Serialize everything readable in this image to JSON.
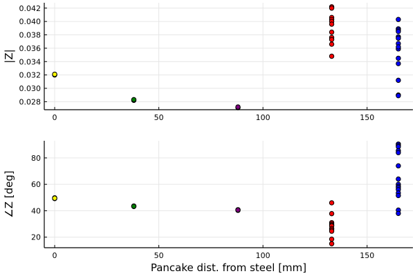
{
  "chart_data": [
    {
      "type": "scatter",
      "title": "",
      "xlabel": "",
      "ylabel": "|Z|",
      "xlim": [
        -5,
        172
      ],
      "ylim": [
        0.0268,
        0.0428
      ],
      "xticks": [
        "0",
        "50",
        "100",
        "150"
      ],
      "xtick_values": [
        0,
        50,
        100,
        150
      ],
      "yticks": [
        "0.028",
        "0.030",
        "0.032",
        "0.034",
        "0.036",
        "0.038",
        "0.040",
        "0.042"
      ],
      "ytick_values": [
        0.028,
        0.03,
        0.032,
        0.034,
        0.036,
        0.038,
        0.04,
        0.042
      ],
      "grid": true,
      "legend": "none",
      "series": [
        {
          "color": "#ffff00",
          "points": [
            [
              0,
              0.0321
            ],
            [
              0,
              0.032
            ],
            [
              0,
              0.0321
            ]
          ]
        },
        {
          "color": "#008000",
          "points": [
            [
              38,
              0.0283
            ],
            [
              38,
              0.0282
            ],
            [
              38,
              0.0283
            ]
          ]
        },
        {
          "color": "#800080",
          "points": [
            [
              88,
              0.0272
            ],
            [
              88,
              0.0271
            ],
            [
              88,
              0.0272
            ]
          ]
        },
        {
          "color": "#ff0000",
          "points": [
            [
              133,
              0.0422
            ],
            [
              133,
              0.042
            ],
            [
              133,
              0.0406
            ],
            [
              133,
              0.0403
            ],
            [
              133,
              0.04
            ],
            [
              133,
              0.0396
            ],
            [
              133,
              0.0384
            ],
            [
              133,
              0.0376
            ],
            [
              133,
              0.0373
            ],
            [
              133,
              0.0366
            ],
            [
              133,
              0.0348
            ]
          ]
        },
        {
          "color": "#0000ff",
          "points": [
            [
              165,
              0.0403
            ],
            [
              165,
              0.0389
            ],
            [
              165,
              0.0387
            ],
            [
              165,
              0.0385
            ],
            [
              165,
              0.0377
            ],
            [
              165,
              0.0375
            ],
            [
              165,
              0.0367
            ],
            [
              165,
              0.0359
            ],
            [
              165,
              0.0362
            ],
            [
              165,
              0.0345
            ],
            [
              165,
              0.0337
            ],
            [
              165,
              0.0312
            ],
            [
              165,
              0.029
            ],
            [
              165,
              0.0289
            ]
          ]
        }
      ]
    },
    {
      "type": "scatter",
      "title": "",
      "xlabel": "Pancake dist. from steel [mm]",
      "ylabel": "∠Z [deg]",
      "xlim": [
        -5,
        172
      ],
      "ylim": [
        12,
        93
      ],
      "xticks": [
        "0",
        "50",
        "100",
        "150"
      ],
      "xtick_values": [
        0,
        50,
        100,
        150
      ],
      "yticks": [
        "20",
        "40",
        "60",
        "80"
      ],
      "ytick_values": [
        20,
        40,
        60,
        80
      ],
      "grid": true,
      "legend": "none",
      "series": [
        {
          "color": "#ffff00",
          "points": [
            [
              0,
              49.8
            ],
            [
              0,
              49.2
            ],
            [
              0,
              49.5
            ]
          ]
        },
        {
          "color": "#008000",
          "points": [
            [
              38,
              43.6
            ],
            [
              38,
              43.2
            ],
            [
              38,
              43.4
            ]
          ]
        },
        {
          "color": "#800080",
          "points": [
            [
              88,
              40.8
            ],
            [
              88,
              40.3
            ],
            [
              88,
              40.6
            ]
          ]
        },
        {
          "color": "#ff0000",
          "points": [
            [
              133,
              46.0
            ],
            [
              133,
              37.8
            ],
            [
              133,
              31.0
            ],
            [
              133,
              30.0
            ],
            [
              133,
              29.2
            ],
            [
              133,
              28.5
            ],
            [
              133,
              26.5
            ],
            [
              133,
              25.5
            ],
            [
              133,
              24.5
            ],
            [
              133,
              18.5
            ],
            [
              133,
              15.0
            ]
          ]
        },
        {
          "color": "#0000ff",
          "points": [
            [
              165,
              90.5
            ],
            [
              165,
              89.5
            ],
            [
              165,
              88.5
            ],
            [
              165,
              85.5
            ],
            [
              165,
              84.0
            ],
            [
              165,
              74.0
            ],
            [
              165,
              64.0
            ],
            [
              165,
              60.0
            ],
            [
              165,
              58.5
            ],
            [
              165,
              57.5
            ],
            [
              165,
              56.0
            ],
            [
              165,
              53.5
            ],
            [
              165,
              51.5
            ],
            [
              165,
              40.5
            ],
            [
              165,
              38.0
            ]
          ]
        }
      ]
    }
  ]
}
